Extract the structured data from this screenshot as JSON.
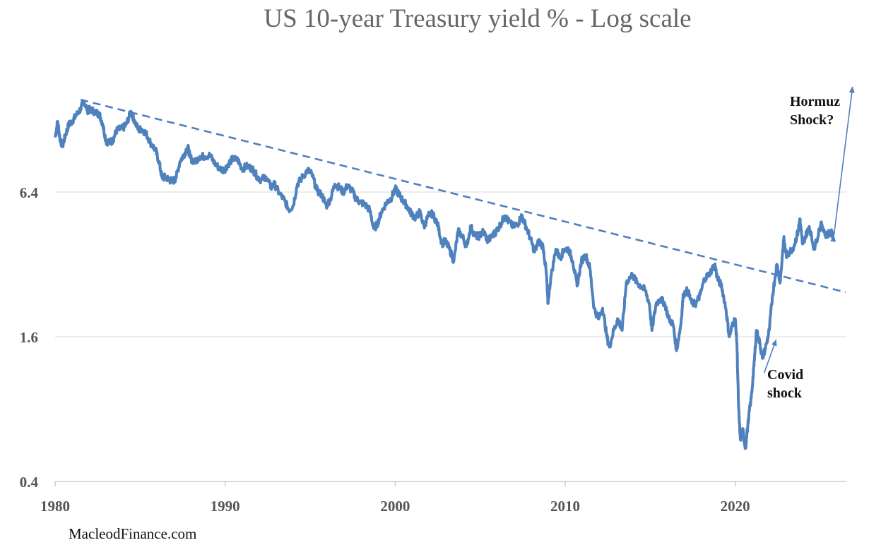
{
  "chart_data": {
    "type": "line",
    "title": "US 10-year Treasury yield % - Log scale",
    "xlabel": "",
    "ylabel": "",
    "y_scale": "log",
    "ylim": [
      0.4,
      26
    ],
    "xlim": [
      1980,
      2026.5
    ],
    "x_ticks": [
      "1980",
      "1990",
      "2000",
      "2010",
      "2020"
    ],
    "y_ticks": [
      "0.4",
      "1.6",
      "6.4"
    ],
    "grid": "horizontal",
    "series": [
      {
        "color": "#4f81bd",
        "points": [
          [
            1980.0,
            10.8
          ],
          [
            1980.15,
            12.6
          ],
          [
            1980.3,
            10.5
          ],
          [
            1980.45,
            10.0
          ],
          [
            1980.6,
            11.0
          ],
          [
            1980.8,
            12.2
          ],
          [
            1981.0,
            12.6
          ],
          [
            1981.2,
            13.2
          ],
          [
            1981.5,
            14.2
          ],
          [
            1981.7,
            15.3
          ],
          [
            1981.9,
            14.0
          ],
          [
            1982.1,
            14.1
          ],
          [
            1982.4,
            13.7
          ],
          [
            1982.6,
            13.5
          ],
          [
            1982.8,
            12.3
          ],
          [
            1983.0,
            10.4
          ],
          [
            1983.2,
            10.3
          ],
          [
            1983.4,
            10.5
          ],
          [
            1983.6,
            11.5
          ],
          [
            1983.8,
            11.7
          ],
          [
            1984.0,
            11.8
          ],
          [
            1984.2,
            12.3
          ],
          [
            1984.45,
            13.8
          ],
          [
            1984.65,
            12.8
          ],
          [
            1984.9,
            11.6
          ],
          [
            1985.1,
            11.7
          ],
          [
            1985.35,
            11.2
          ],
          [
            1985.6,
            10.3
          ],
          [
            1985.9,
            9.6
          ],
          [
            1986.1,
            8.6
          ],
          [
            1986.3,
            7.3
          ],
          [
            1986.5,
            7.4
          ],
          [
            1986.7,
            7.2
          ],
          [
            1986.9,
            7.1
          ],
          [
            1987.1,
            7.3
          ],
          [
            1987.35,
            8.6
          ],
          [
            1987.6,
            9.2
          ],
          [
            1987.8,
            9.9
          ],
          [
            1987.95,
            8.9
          ],
          [
            1988.2,
            8.5
          ],
          [
            1988.5,
            9.0
          ],
          [
            1988.8,
            9.0
          ],
          [
            1989.1,
            9.1
          ],
          [
            1989.4,
            8.4
          ],
          [
            1989.7,
            8.0
          ],
          [
            1989.95,
            7.9
          ],
          [
            1990.2,
            8.4
          ],
          [
            1990.45,
            8.8
          ],
          [
            1990.75,
            8.7
          ],
          [
            1991.0,
            8.0
          ],
          [
            1991.3,
            8.2
          ],
          [
            1991.6,
            8.0
          ],
          [
            1991.9,
            7.4
          ],
          [
            1992.1,
            7.2
          ],
          [
            1992.4,
            7.4
          ],
          [
            1992.7,
            6.7
          ],
          [
            1992.9,
            6.9
          ],
          [
            1993.2,
            6.3
          ],
          [
            1993.5,
            5.9
          ],
          [
            1993.75,
            5.4
          ],
          [
            1994.0,
            5.6
          ],
          [
            1994.25,
            6.9
          ],
          [
            1994.5,
            7.3
          ],
          [
            1994.85,
            7.9
          ],
          [
            1995.1,
            7.6
          ],
          [
            1995.4,
            6.5
          ],
          [
            1995.7,
            6.2
          ],
          [
            1995.95,
            5.6
          ],
          [
            1996.2,
            6.0
          ],
          [
            1996.45,
            6.9
          ],
          [
            1996.7,
            6.7
          ],
          [
            1996.95,
            6.4
          ],
          [
            1997.2,
            6.8
          ],
          [
            1997.45,
            6.5
          ],
          [
            1997.7,
            6.0
          ],
          [
            1997.95,
            5.8
          ],
          [
            1998.2,
            5.7
          ],
          [
            1998.5,
            5.4
          ],
          [
            1998.75,
            4.5
          ],
          [
            1998.95,
            4.7
          ],
          [
            1999.2,
            5.3
          ],
          [
            1999.5,
            5.8
          ],
          [
            1999.75,
            6.0
          ],
          [
            2000.0,
            6.6
          ],
          [
            2000.2,
            6.3
          ],
          [
            2000.45,
            5.9
          ],
          [
            2000.7,
            5.6
          ],
          [
            2000.95,
            5.2
          ],
          [
            2001.2,
            5.0
          ],
          [
            2001.45,
            5.3
          ],
          [
            2001.7,
            4.6
          ],
          [
            2001.95,
            5.1
          ],
          [
            2002.2,
            5.2
          ],
          [
            2002.5,
            4.7
          ],
          [
            2002.75,
            3.9
          ],
          [
            2002.95,
            4.0
          ],
          [
            2003.2,
            3.7
          ],
          [
            2003.45,
            3.3
          ],
          [
            2003.7,
            4.4
          ],
          [
            2003.95,
            4.2
          ],
          [
            2004.2,
            3.8
          ],
          [
            2004.45,
            4.6
          ],
          [
            2004.7,
            4.2
          ],
          [
            2004.95,
            4.2
          ],
          [
            2005.2,
            4.4
          ],
          [
            2005.45,
            4.0
          ],
          [
            2005.7,
            4.2
          ],
          [
            2005.95,
            4.4
          ],
          [
            2006.2,
            4.7
          ],
          [
            2006.45,
            5.1
          ],
          [
            2006.7,
            4.8
          ],
          [
            2006.95,
            4.6
          ],
          [
            2007.2,
            4.7
          ],
          [
            2007.45,
            5.1
          ],
          [
            2007.7,
            4.6
          ],
          [
            2007.95,
            4.1
          ],
          [
            2008.2,
            3.6
          ],
          [
            2008.45,
            4.0
          ],
          [
            2008.7,
            3.8
          ],
          [
            2008.9,
            2.9
          ],
          [
            2008.98,
            2.2
          ],
          [
            2009.15,
            2.8
          ],
          [
            2009.45,
            3.7
          ],
          [
            2009.7,
            3.4
          ],
          [
            2009.95,
            3.7
          ],
          [
            2010.2,
            3.7
          ],
          [
            2010.45,
            3.3
          ],
          [
            2010.7,
            2.6
          ],
          [
            2010.95,
            3.3
          ],
          [
            2011.2,
            3.5
          ],
          [
            2011.45,
            3.1
          ],
          [
            2011.7,
            2.1
          ],
          [
            2011.95,
            1.9
          ],
          [
            2012.2,
            2.1
          ],
          [
            2012.45,
            1.6
          ],
          [
            2012.6,
            1.45
          ],
          [
            2012.85,
            1.7
          ],
          [
            2013.1,
            1.9
          ],
          [
            2013.35,
            1.7
          ],
          [
            2013.6,
            2.7
          ],
          [
            2013.95,
            2.9
          ],
          [
            2014.2,
            2.7
          ],
          [
            2014.45,
            2.6
          ],
          [
            2014.7,
            2.5
          ],
          [
            2014.95,
            2.2
          ],
          [
            2015.1,
            1.7
          ],
          [
            2015.35,
            2.2
          ],
          [
            2015.6,
            2.3
          ],
          [
            2015.85,
            2.2
          ],
          [
            2016.1,
            1.9
          ],
          [
            2016.35,
            1.8
          ],
          [
            2016.55,
            1.4
          ],
          [
            2016.8,
            1.8
          ],
          [
            2016.95,
            2.4
          ],
          [
            2017.2,
            2.5
          ],
          [
            2017.45,
            2.2
          ],
          [
            2017.7,
            2.2
          ],
          [
            2017.95,
            2.4
          ],
          [
            2018.2,
            2.8
          ],
          [
            2018.45,
            2.9
          ],
          [
            2018.8,
            3.2
          ],
          [
            2018.95,
            2.8
          ],
          [
            2019.2,
            2.6
          ],
          [
            2019.45,
            2.1
          ],
          [
            2019.65,
            1.6
          ],
          [
            2019.85,
            1.8
          ],
          [
            2020.0,
            1.9
          ],
          [
            2020.1,
            1.5
          ],
          [
            2020.2,
            0.8
          ],
          [
            2020.3,
            0.6
          ],
          [
            2020.45,
            0.65
          ],
          [
            2020.6,
            0.55
          ],
          [
            2020.8,
            0.75
          ],
          [
            2020.95,
            0.9
          ],
          [
            2021.1,
            1.2
          ],
          [
            2021.25,
            1.7
          ],
          [
            2021.45,
            1.5
          ],
          [
            2021.6,
            1.3
          ],
          [
            2021.85,
            1.5
          ],
          [
            2022.0,
            1.7
          ],
          [
            2022.2,
            2.4
          ],
          [
            2022.45,
            3.2
          ],
          [
            2022.65,
            2.7
          ],
          [
            2022.85,
            4.1
          ],
          [
            2023.0,
            3.5
          ],
          [
            2023.2,
            3.6
          ],
          [
            2023.45,
            3.8
          ],
          [
            2023.7,
            4.4
          ],
          [
            2023.8,
            4.95
          ],
          [
            2023.95,
            3.9
          ],
          [
            2024.2,
            4.3
          ],
          [
            2024.35,
            4.6
          ],
          [
            2024.65,
            3.7
          ],
          [
            2024.95,
            4.5
          ],
          [
            2025.1,
            4.7
          ],
          [
            2025.35,
            4.2
          ],
          [
            2025.6,
            4.4
          ],
          [
            2025.8,
            4.1
          ]
        ]
      }
    ],
    "trendline": {
      "from": [
        1981.5,
        15.5
      ],
      "to": [
        2026.5,
        2.45
      ],
      "style": "dashed"
    },
    "annotations": [
      {
        "text_lines": [
          "Hormuz",
          "Shock?"
        ],
        "arrow_from": [
          2025.8,
          4.2
        ],
        "arrow_to": [
          2026.9,
          17.5
        ]
      },
      {
        "text_lines": [
          "Covid",
          "shock"
        ],
        "arrow_from": [
          2021.7,
          1.13
        ],
        "arrow_to": [
          2022.4,
          1.55
        ]
      }
    ],
    "source": "MacleodFinance.com"
  }
}
